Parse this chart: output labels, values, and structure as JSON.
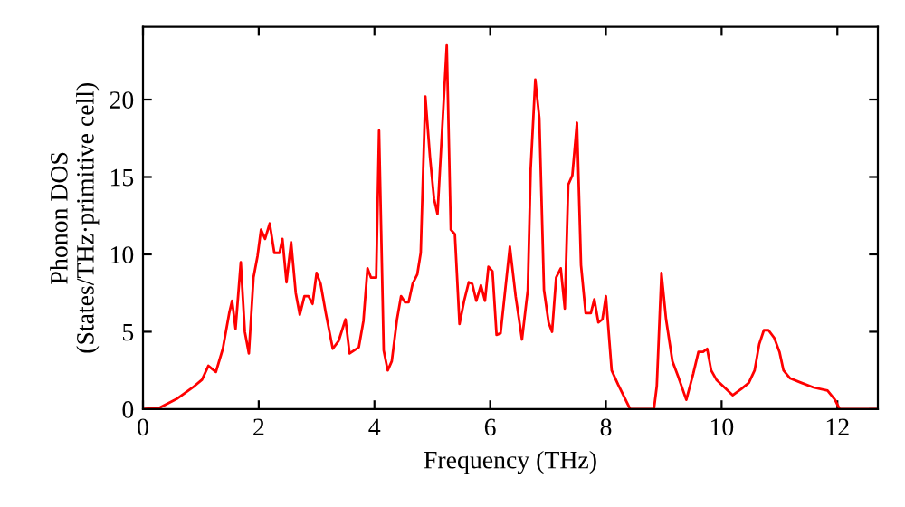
{
  "chart_data": {
    "type": "line",
    "xlabel": "Frequency (THz)",
    "ylabel": "Phonon DOS\n(States/THz·primitive cell)",
    "xlim": [
      0,
      12.7
    ],
    "ylim": [
      0,
      24.7
    ],
    "xticks": [
      0,
      2,
      4,
      6,
      8,
      10,
      12
    ],
    "yticks": [
      0,
      5,
      10,
      15,
      20
    ],
    "grid": false,
    "marker": "none",
    "line_style": "solid",
    "series": [
      {
        "color": "#ff0000",
        "x": [
          0,
          0.29,
          0.6,
          0.86,
          1.02,
          1.13,
          1.26,
          1.38,
          1.49,
          1.54,
          1.6,
          1.69,
          1.76,
          1.83,
          1.91,
          1.98,
          2.04,
          2.11,
          2.19,
          2.27,
          2.36,
          2.41,
          2.48,
          2.56,
          2.64,
          2.71,
          2.79,
          2.86,
          2.93,
          3.0,
          3.07,
          3.16,
          3.28,
          3.38,
          3.5,
          3.57,
          3.73,
          3.81,
          3.88,
          3.94,
          4.03,
          4.08,
          4.16,
          4.23,
          4.3,
          4.39,
          4.46,
          4.53,
          4.59,
          4.66,
          4.74,
          4.8,
          4.88,
          4.96,
          5.03,
          5.09,
          5.25,
          5.32,
          5.39,
          5.47,
          5.55,
          5.63,
          5.69,
          5.76,
          5.84,
          5.91,
          5.97,
          6.04,
          6.11,
          6.18,
          6.34,
          6.44,
          6.55,
          6.65,
          6.7,
          6.78,
          6.85,
          6.93,
          7.01,
          7.07,
          7.14,
          7.22,
          7.29,
          7.35,
          7.42,
          7.5,
          7.57,
          7.65,
          7.74,
          7.8,
          7.87,
          7.94,
          8.0,
          8.1,
          8.21,
          8.42,
          8.83,
          8.88,
          8.96,
          9.04,
          9.15,
          9.25,
          9.39,
          9.51,
          9.6,
          9.68,
          9.75,
          9.82,
          9.91,
          10.05,
          10.19,
          10.34,
          10.47,
          10.57,
          10.65,
          10.73,
          10.81,
          10.91,
          11.0,
          11.07,
          11.18,
          11.38,
          11.59,
          11.83,
          11.96,
          12.04,
          12.68
        ],
        "values": [
          0,
          0.1,
          0.7,
          1.4,
          1.9,
          2.8,
          2.4,
          3.9,
          6.2,
          7.0,
          5.2,
          9.5,
          5.0,
          3.6,
          8.5,
          9.9,
          11.6,
          11.0,
          12.0,
          10.1,
          10.1,
          11.0,
          8.2,
          10.8,
          7.5,
          6.1,
          7.3,
          7.3,
          6.8,
          8.8,
          8.1,
          6.2,
          3.9,
          4.4,
          5.8,
          3.6,
          4.0,
          5.7,
          9.1,
          8.5,
          8.5,
          18,
          3.8,
          2.5,
          3.1,
          5.8,
          7.3,
          6.9,
          6.9,
          8.1,
          8.7,
          10.1,
          20.2,
          16.3,
          13.6,
          12.6,
          23.5,
          11.6,
          11.3,
          5.5,
          7,
          8.2,
          8.1,
          7,
          8.0,
          7,
          9.2,
          8.9,
          4.8,
          4.9,
          10.5,
          7.3,
          4.5,
          7.7,
          15.5,
          21.3,
          18.8,
          7.7,
          5.6,
          5.0,
          8.5,
          9.1,
          6.5,
          14.5,
          15.1,
          18.5,
          9.3,
          6.2,
          6.2,
          7.1,
          5.6,
          5.8,
          7.3,
          2.5,
          1.6,
          0,
          0,
          1.5,
          8.8,
          5.8,
          3.1,
          2.1,
          0.6,
          2.3,
          3.7,
          3.7,
          3.9,
          2.5,
          1.9,
          1.4,
          0.9,
          1.3,
          1.7,
          2.5,
          4.2,
          5.1,
          5.1,
          4.6,
          3.7,
          2.5,
          2.0,
          1.7,
          1.4,
          1.2,
          0.6,
          0,
          0
        ]
      }
    ]
  }
}
